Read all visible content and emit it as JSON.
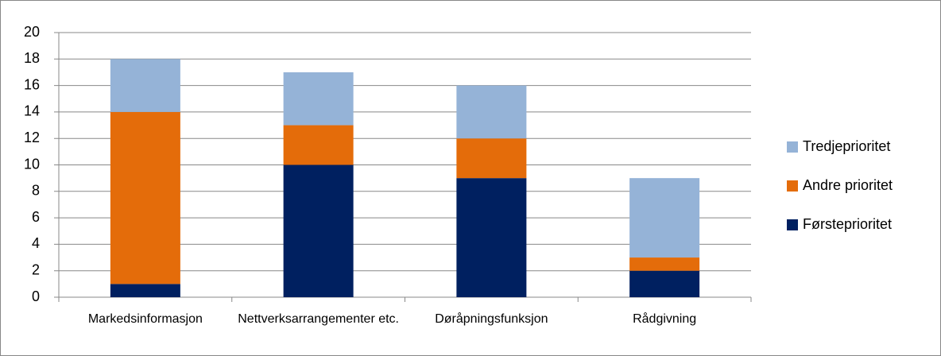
{
  "chart_data": {
    "type": "stacked_bar",
    "categories": [
      "Markedsinformasjon",
      "Nettverksarrangementer etc.",
      "Døråpningsfunksjon",
      "Rådgivning"
    ],
    "series": [
      {
        "name": "Førsteprioritet",
        "color": "#002060",
        "values": [
          1,
          10,
          9,
          2
        ]
      },
      {
        "name": "Andre prioritet",
        "color": "#e46c0a",
        "values": [
          13,
          3,
          3,
          1
        ]
      },
      {
        "name": "Tredjeprioritet",
        "color": "#95b3d7",
        "values": [
          4,
          4,
          4,
          6
        ]
      }
    ],
    "ylim": [
      0,
      20
    ],
    "yticks": [
      0,
      2,
      4,
      6,
      8,
      10,
      12,
      14,
      16,
      18,
      20
    ],
    "grid": true,
    "legend": "right"
  }
}
